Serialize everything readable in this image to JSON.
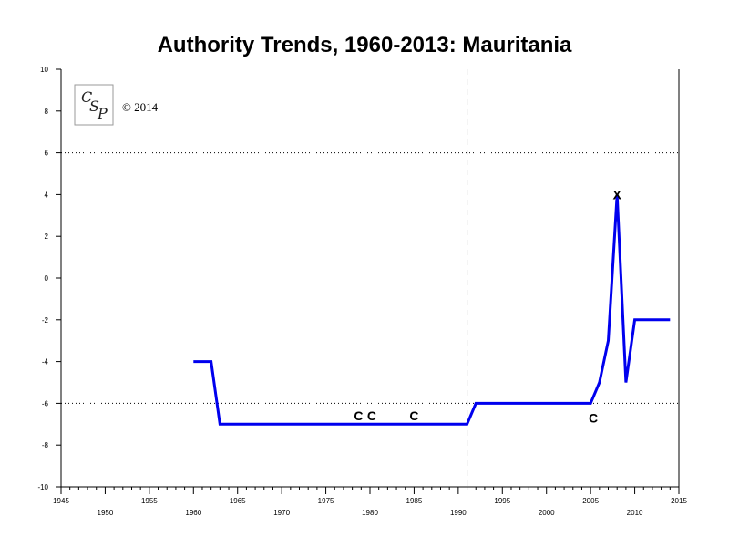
{
  "chart_data": {
    "type": "line",
    "title": "Authority Trends, 1960-2013: Mauritania",
    "xlim": [
      1945,
      2015
    ],
    "ylim": [
      -10,
      10
    ],
    "x_ticks_major": [
      1945,
      1950,
      1955,
      1960,
      1965,
      1970,
      1975,
      1980,
      1985,
      1990,
      1995,
      2000,
      2005,
      2010,
      2015
    ],
    "y_ticks": [
      -10,
      -8,
      -6,
      -4,
      -2,
      0,
      2,
      4,
      6,
      8,
      10
    ],
    "reference_lines": {
      "horizontal_dotted": [
        6,
        -6
      ],
      "vertical_dashed": [
        1991
      ]
    },
    "series": [
      {
        "color": "#0000ee",
        "points": [
          [
            1960,
            -4
          ],
          [
            1962,
            -4
          ],
          [
            1963,
            -7
          ],
          [
            1991,
            -7
          ],
          [
            1992,
            -6
          ],
          [
            2005,
            -6
          ],
          [
            2006,
            -5
          ],
          [
            2007,
            -3
          ],
          [
            2008,
            4
          ],
          [
            2009,
            -5
          ],
          [
            2010,
            -2
          ],
          [
            2014,
            -2
          ]
        ]
      }
    ],
    "markers": [
      {
        "label": "C",
        "x": 1978.7,
        "y": -6.6
      },
      {
        "label": "C",
        "x": 1980.2,
        "y": -6.6
      },
      {
        "label": "C",
        "x": 1985,
        "y": -6.6
      },
      {
        "label": "C",
        "x": 2005.3,
        "y": -6.7
      },
      {
        "label": "X",
        "x": 2008,
        "y": 4
      }
    ],
    "copyright": "© 2014",
    "logo": "CSP"
  }
}
